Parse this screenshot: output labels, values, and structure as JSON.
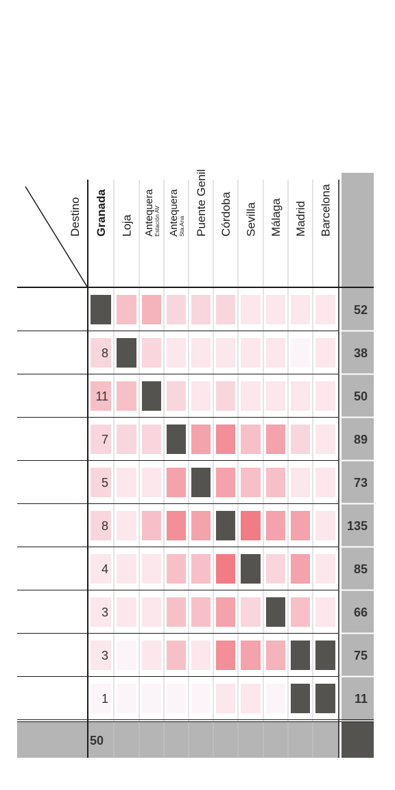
{
  "chart_data": {
    "type": "heatmap",
    "corner_label": "Destino",
    "columns": [
      {
        "name": "Granada",
        "bold": true
      },
      {
        "name": "Loja"
      },
      {
        "name": "Antequera",
        "sub": "Estación AV"
      },
      {
        "name": "Antequera",
        "sub": "Sta.Ana"
      },
      {
        "name": "Puente Genil"
      },
      {
        "name": "Córdoba"
      },
      {
        "name": "Sevilla"
      },
      {
        "name": "Málaga"
      },
      {
        "name": "Madrid"
      },
      {
        "name": "Barcelona"
      }
    ],
    "row_totals": [
      52,
      38,
      50,
      89,
      73,
      135,
      85,
      66,
      75,
      11
    ],
    "granada_values": [
      null,
      8,
      11,
      7,
      5,
      8,
      4,
      3,
      3,
      1
    ],
    "grand_total": 50,
    "intensity_levels": [
      [
        0,
        3,
        4,
        2,
        2,
        2,
        1,
        1,
        1,
        1
      ],
      [
        2,
        0,
        2,
        1,
        1,
        1,
        1,
        1,
        0,
        1
      ],
      [
        3,
        3,
        0,
        2,
        1,
        2,
        1,
        1,
        1,
        1
      ],
      [
        2,
        2,
        2,
        0,
        5,
        6,
        3,
        5,
        2,
        1
      ],
      [
        2,
        1,
        1,
        5,
        0,
        5,
        3,
        3,
        1,
        1
      ],
      [
        2,
        1,
        3,
        6,
        5,
        0,
        7,
        5,
        5,
        1
      ],
      [
        1,
        1,
        1,
        3,
        3,
        7,
        0,
        2,
        5,
        1
      ],
      [
        1,
        1,
        1,
        3,
        3,
        5,
        2,
        0,
        3,
        1
      ],
      [
        1,
        0,
        1,
        3,
        1,
        6,
        5,
        4,
        0,
        0
      ],
      [
        0,
        0,
        0,
        0,
        0,
        1,
        1,
        0,
        0,
        0
      ]
    ],
    "dark_cells": [
      [
        0,
        0
      ],
      [
        1,
        1
      ],
      [
        2,
        2
      ],
      [
        3,
        3
      ],
      [
        4,
        4
      ],
      [
        5,
        5
      ],
      [
        6,
        6
      ],
      [
        7,
        7
      ],
      [
        8,
        8
      ],
      [
        8,
        9
      ],
      [
        9,
        8
      ],
      [
        9,
        9
      ]
    ],
    "colors": {
      "scale": [
        "#fbf5f9",
        "#fbe7ec",
        "#f9d6dd",
        "#f7c0c8",
        "#f5b3bb",
        "#f4a2ab",
        "#f28f98",
        "#f27c85",
        "#f06670"
      ],
      "dark": "#545350",
      "total_bg": "#b5b5b5",
      "line": "#1a1a1a",
      "grid": "#c8c8c8"
    }
  }
}
